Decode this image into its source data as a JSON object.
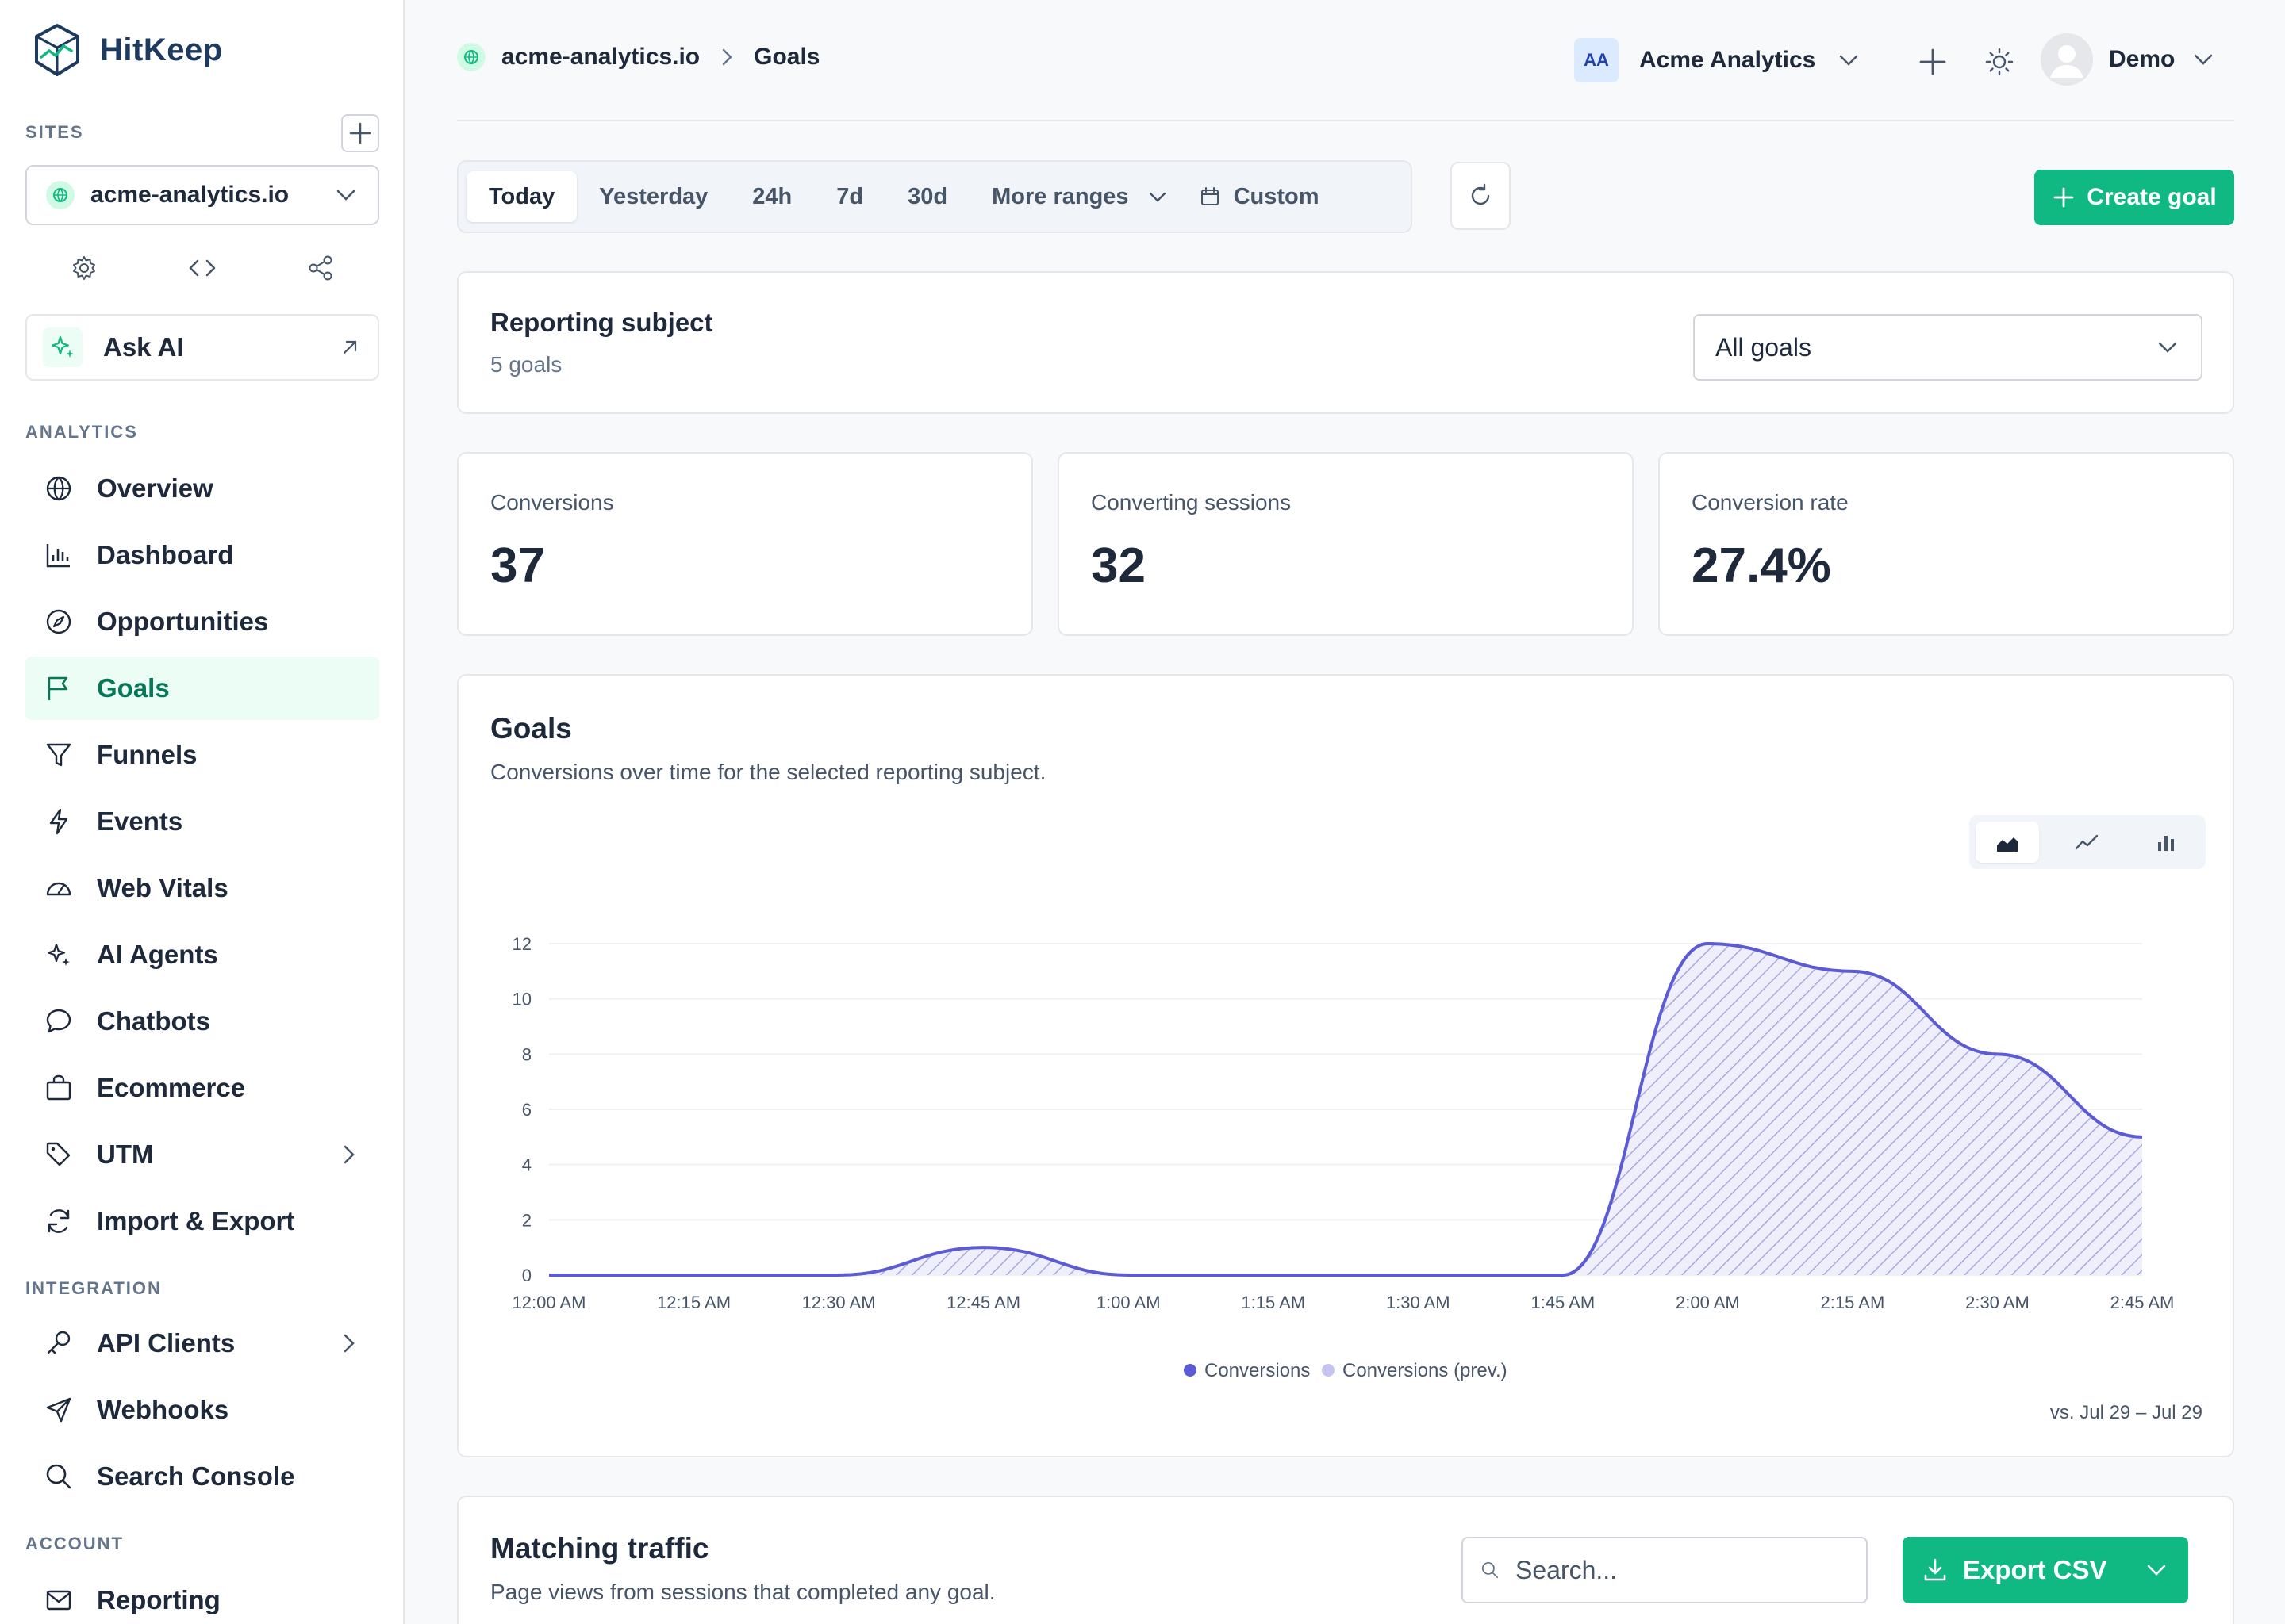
{
  "brand": {
    "name": "HitKeep"
  },
  "sidebar": {
    "sites_label": "SITES",
    "current_site": "acme-analytics.io",
    "ask_ai_label": "Ask AI",
    "analytics_label": "ANALYTICS",
    "integration_label": "INTEGRATION",
    "account_label": "ACCOUNT",
    "analytics_items": [
      {
        "label": "Overview",
        "icon": "globe-icon"
      },
      {
        "label": "Dashboard",
        "icon": "bar-chart-icon"
      },
      {
        "label": "Opportunities",
        "icon": "compass-icon"
      },
      {
        "label": "Goals",
        "icon": "flag-icon",
        "active": true
      },
      {
        "label": "Funnels",
        "icon": "funnel-icon"
      },
      {
        "label": "Events",
        "icon": "bolt-icon"
      },
      {
        "label": "Web Vitals",
        "icon": "gauge-icon"
      },
      {
        "label": "AI Agents",
        "icon": "sparkle-icon"
      },
      {
        "label": "Chatbots",
        "icon": "chat-icon"
      },
      {
        "label": "Ecommerce",
        "icon": "bag-icon"
      },
      {
        "label": "UTM",
        "icon": "tag-icon",
        "expandable": true
      },
      {
        "label": "Import & Export",
        "icon": "sync-icon"
      }
    ],
    "integration_items": [
      {
        "label": "API Clients",
        "icon": "key-icon",
        "expandable": true
      },
      {
        "label": "Webhooks",
        "icon": "send-icon"
      },
      {
        "label": "Search Console",
        "icon": "search-icon"
      }
    ],
    "account_items": [
      {
        "label": "Reporting",
        "icon": "mail-icon"
      }
    ]
  },
  "header": {
    "breadcrumb_site": "acme-analytics.io",
    "breadcrumb_page": "Goals",
    "org_initials": "AA",
    "org_name": "Acme Analytics",
    "user_name": "Demo"
  },
  "toolbar": {
    "ranges": [
      "Today",
      "Yesterday",
      "24h",
      "7d",
      "30d"
    ],
    "active_range": "Today",
    "more_ranges_label": "More ranges",
    "custom_label": "Custom",
    "create_goal_label": "Create goal"
  },
  "subject": {
    "title": "Reporting subject",
    "count_text": "5 goals",
    "selected": "All goals"
  },
  "stats": [
    {
      "label": "Conversions",
      "value": "37"
    },
    {
      "label": "Converting sessions",
      "value": "32"
    },
    {
      "label": "Conversion rate",
      "value": "27.4%"
    }
  ],
  "chart_card": {
    "title": "Goals",
    "subtitle": "Conversions over time for the selected reporting subject.",
    "compare_note": "vs. Jul 29 – Jul 29",
    "chart_type": "area"
  },
  "chart_data": {
    "type": "area",
    "x": [
      "12:00 AM",
      "12:15 AM",
      "12:30 AM",
      "12:45 AM",
      "1:00 AM",
      "1:15 AM",
      "1:30 AM",
      "1:45 AM",
      "2:00 AM",
      "2:15 AM",
      "2:30 AM",
      "2:45 AM"
    ],
    "series": [
      {
        "name": "Conversions",
        "color": "#5b5bd6",
        "values": [
          0,
          0,
          0,
          1,
          0,
          0,
          0,
          0,
          12,
          11,
          8,
          5
        ]
      },
      {
        "name": "Conversions (prev.)",
        "color": "#c4c4f0",
        "values": [
          0,
          0,
          0,
          1,
          0,
          0,
          0,
          0,
          12,
          11,
          8,
          5
        ]
      }
    ],
    "ylim": [
      0,
      12
    ],
    "yticks": [
      0,
      2,
      4,
      6,
      8,
      10,
      12
    ],
    "grid": true,
    "legend_position": "bottom-center"
  },
  "traffic": {
    "title": "Matching traffic",
    "subtitle": "Page views from sessions that completed any goal.",
    "search_placeholder": "Search...",
    "export_label": "Export CSV"
  }
}
